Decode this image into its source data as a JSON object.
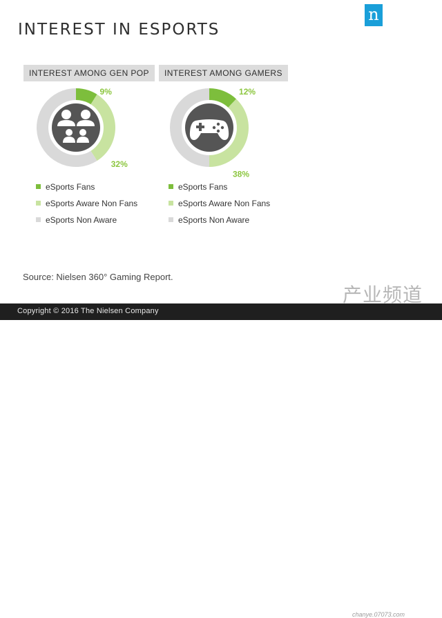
{
  "title": "INTEREST IN ESPORTS",
  "brand": {
    "logo_letter": "n",
    "color": "#1a9fd9"
  },
  "colors": {
    "fans": "#7dbe3c",
    "aware": "#c8e3a0",
    "non_aware": "#d9d9d9",
    "icon_bg": "#555555"
  },
  "chart_data": [
    {
      "type": "pie",
      "variant": "donut",
      "title": "INTEREST AMONG GEN POP",
      "icon": "people-group-icon",
      "categories": [
        "eSports Fans",
        "eSports Aware Non Fans",
        "eSports Non Aware"
      ],
      "values": [
        9,
        32,
        59
      ],
      "data_labels": [
        "9%",
        "32%",
        null
      ]
    },
    {
      "type": "pie",
      "variant": "donut",
      "title": "INTEREST AMONG GAMERS",
      "icon": "gamepad-icon",
      "categories": [
        "eSports Fans",
        "eSports Aware Non Fans",
        "eSports Non Aware"
      ],
      "values": [
        12,
        38,
        50
      ],
      "data_labels": [
        "12%",
        "38%",
        null
      ]
    }
  ],
  "legend": [
    "eSports Fans",
    "eSports Aware Non Fans",
    "eSports Non Aware"
  ],
  "source": "Source: Nielsen 360° Gaming Report.",
  "copyright": "Copyright © 2016 The Nielsen Company",
  "watermark": {
    "text": "产业频道",
    "url": "chanye.07073.com"
  }
}
